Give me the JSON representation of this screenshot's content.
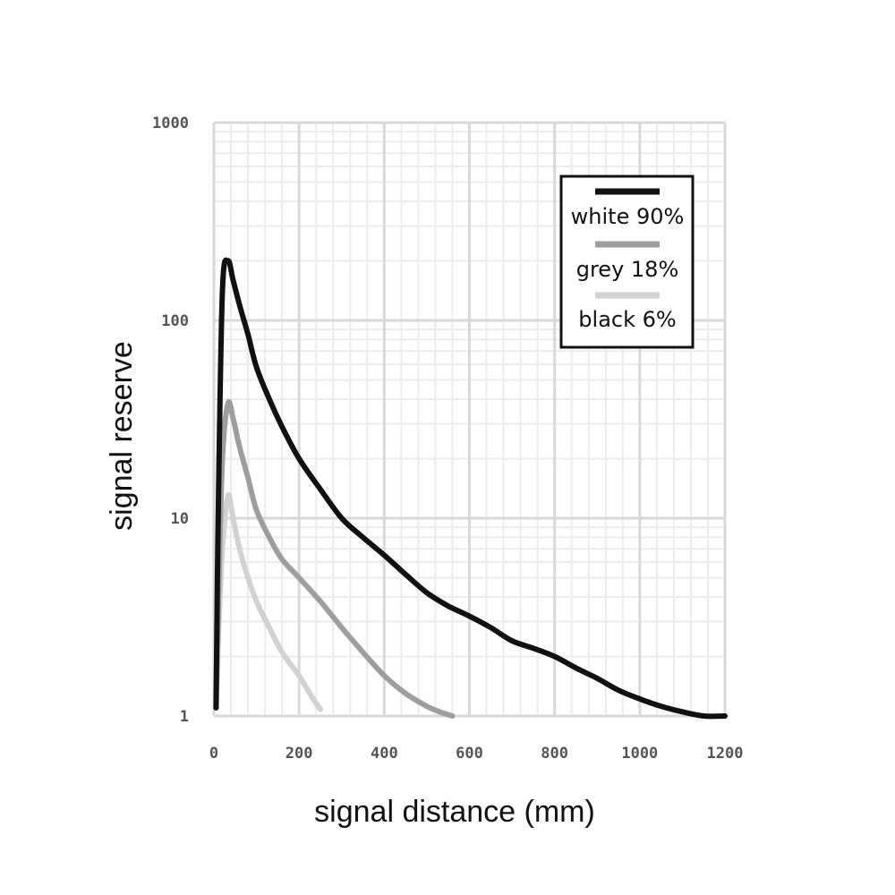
{
  "chart_data": {
    "type": "line",
    "xlabel": "signal distance (mm)",
    "ylabel": "signal reserve",
    "xlim": [
      0,
      1200
    ],
    "ylim": [
      1,
      1000
    ],
    "yscale": "log",
    "grid": true,
    "legend_position": "top-right",
    "x_ticks": [
      {
        "value": 0,
        "label": "0"
      },
      {
        "value": 200,
        "label": "200"
      },
      {
        "value": 400,
        "label": "400"
      },
      {
        "value": 600,
        "label": "600"
      },
      {
        "value": 800,
        "label": "800"
      },
      {
        "value": 1000,
        "label": "1000"
      },
      {
        "value": 1200,
        "label": "1200"
      }
    ],
    "y_ticks": [
      {
        "value": 1,
        "label": "1"
      },
      {
        "value": 10,
        "label": "10"
      },
      {
        "value": 100,
        "label": "100"
      },
      {
        "value": 1000,
        "label": "1000"
      }
    ],
    "series": [
      {
        "name": "white 90%",
        "color": "#111111",
        "points": [
          [
            5,
            1.1
          ],
          [
            10,
            10
          ],
          [
            20,
            140
          ],
          [
            33,
            200
          ],
          [
            45,
            160
          ],
          [
            60,
            120
          ],
          [
            80,
            85
          ],
          [
            100,
            58
          ],
          [
            130,
            40
          ],
          [
            160,
            29
          ],
          [
            200,
            20
          ],
          [
            250,
            14
          ],
          [
            300,
            10
          ],
          [
            350,
            8
          ],
          [
            400,
            6.5
          ],
          [
            450,
            5.2
          ],
          [
            500,
            4.2
          ],
          [
            550,
            3.6
          ],
          [
            600,
            3.2
          ],
          [
            650,
            2.8
          ],
          [
            700,
            2.4
          ],
          [
            750,
            2.2
          ],
          [
            800,
            2.0
          ],
          [
            850,
            1.75
          ],
          [
            900,
            1.55
          ],
          [
            950,
            1.35
          ],
          [
            1000,
            1.22
          ],
          [
            1050,
            1.12
          ],
          [
            1100,
            1.05
          ],
          [
            1150,
            1.0
          ],
          [
            1200,
            1.0
          ]
        ]
      },
      {
        "name": "grey 18%",
        "color": "#9e9e9e",
        "points": [
          [
            5,
            1.1
          ],
          [
            12,
            5
          ],
          [
            20,
            20
          ],
          [
            33,
            38
          ],
          [
            45,
            32
          ],
          [
            60,
            23
          ],
          [
            80,
            16
          ],
          [
            100,
            11
          ],
          [
            130,
            8
          ],
          [
            160,
            6.2
          ],
          [
            200,
            5
          ],
          [
            250,
            3.8
          ],
          [
            300,
            2.8
          ],
          [
            350,
            2.1
          ],
          [
            400,
            1.6
          ],
          [
            450,
            1.3
          ],
          [
            500,
            1.12
          ],
          [
            530,
            1.05
          ],
          [
            560,
            1.0
          ]
        ]
      },
      {
        "name": "black 6%",
        "color": "#d2d2d2",
        "points": [
          [
            5,
            1.1
          ],
          [
            12,
            3
          ],
          [
            20,
            7
          ],
          [
            33,
            13
          ],
          [
            45,
            10
          ],
          [
            60,
            7
          ],
          [
            80,
            5
          ],
          [
            100,
            3.8
          ],
          [
            130,
            2.8
          ],
          [
            160,
            2.1
          ],
          [
            200,
            1.6
          ],
          [
            225,
            1.3
          ],
          [
            250,
            1.08
          ]
        ]
      }
    ]
  }
}
